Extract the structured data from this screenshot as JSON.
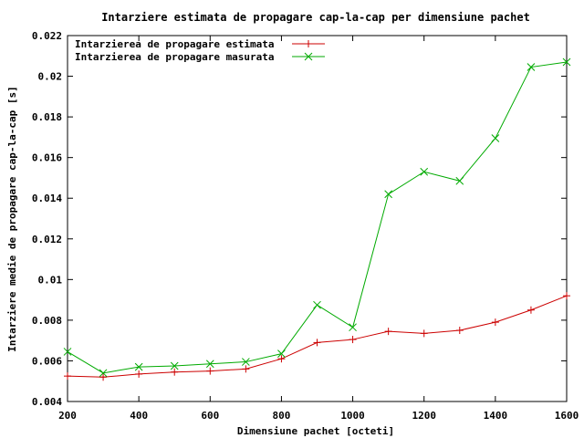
{
  "chart_data": {
    "type": "line",
    "title": "Intarziere estimata de propagare cap-la-cap per dimensiune pachet",
    "xlabel": "Dimensiune pachet [octeti]",
    "ylabel": "Intarziere medie de propagare cap-la-cap [s]",
    "xlim": [
      200,
      1600
    ],
    "ylim": [
      0.004,
      0.022
    ],
    "x_ticks": [
      "200",
      "400",
      "600",
      "800",
      "1000",
      "1200",
      "1400",
      "1600"
    ],
    "y_ticks": [
      "0.004",
      "0.006",
      "0.008",
      "0.01",
      "0.012",
      "0.014",
      "0.016",
      "0.018",
      "0.02",
      "0.022"
    ],
    "grid": false,
    "legend_position": "top-left",
    "x": [
      200,
      300,
      400,
      500,
      600,
      700,
      800,
      900,
      1000,
      1100,
      1200,
      1300,
      1400,
      1500,
      1600
    ],
    "series": [
      {
        "name": "Intarzierea de propagare estimata",
        "color": "#cc0000",
        "marker": "plus",
        "values": [
          0.00525,
          0.0052,
          0.00535,
          0.00545,
          0.0055,
          0.0056,
          0.0061,
          0.0069,
          0.00705,
          0.00745,
          0.00735,
          0.0075,
          0.0079,
          0.0085,
          0.0092
        ]
      },
      {
        "name": "Intarzierea de propagare masurata",
        "color": "#00aa00",
        "marker": "cross",
        "values": [
          0.00645,
          0.0054,
          0.0057,
          0.00575,
          0.00585,
          0.00595,
          0.00635,
          0.00875,
          0.00765,
          0.0142,
          0.0153,
          0.01485,
          0.01695,
          0.02045,
          0.0207
        ]
      }
    ]
  }
}
